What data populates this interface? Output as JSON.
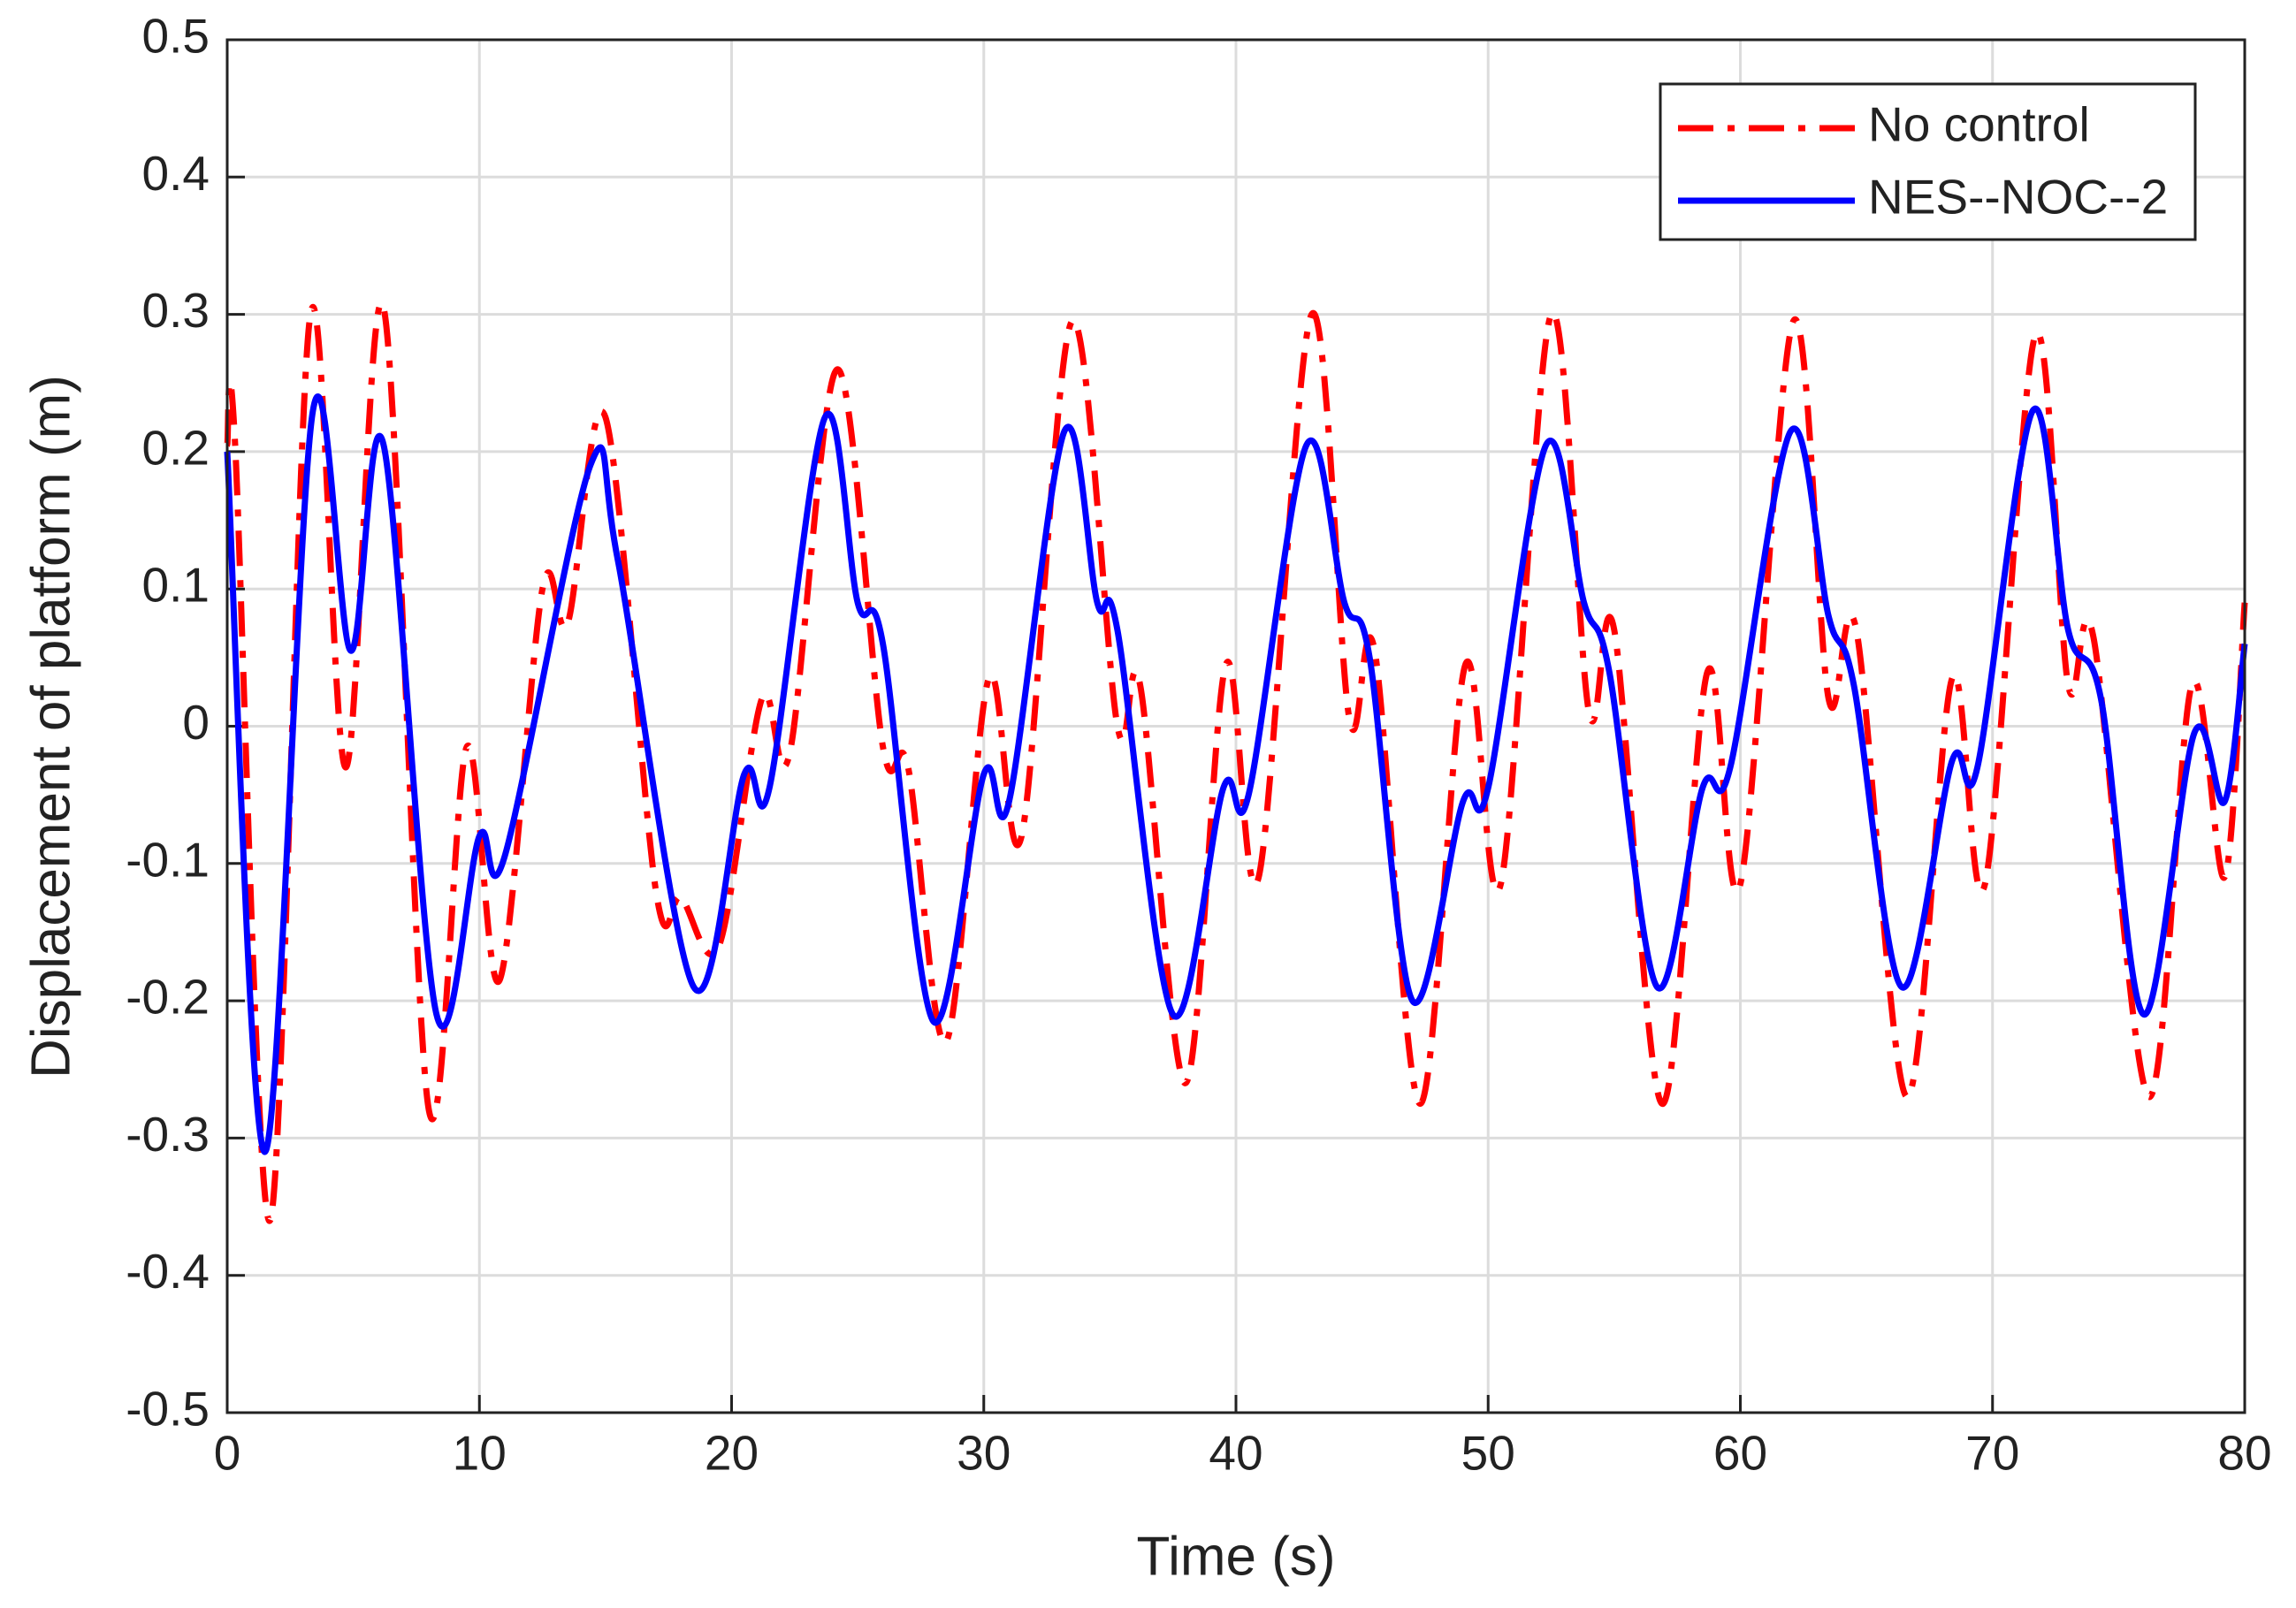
{
  "chart_data": {
    "type": "line",
    "xlabel": "Time (s)",
    "ylabel": "Displacement of platform (m)",
    "xlim": [
      0,
      80
    ],
    "xticks": [
      0,
      10,
      20,
      30,
      40,
      50,
      60,
      70,
      80
    ],
    "ylim": [
      -0.5,
      0.5
    ],
    "yticks": [
      -0.5,
      -0.4,
      -0.3,
      -0.2,
      -0.1,
      0,
      0.1,
      0.2,
      0.3,
      0.4,
      0.5
    ],
    "grid": true,
    "legend": "upper right",
    "series": [
      {
        "name": "No control",
        "color": "#ff0000",
        "style": "dash-dot",
        "x": [
          0,
          0.3,
          1.7,
          3.3,
          4.7,
          6.2,
          8,
          9.5,
          10.8,
          12.5,
          13.5,
          15,
          17,
          18,
          19.5,
          21.2,
          22.3,
          24.2,
          26,
          27,
          28.5,
          30.2,
          31.5,
          33.5,
          35.3,
          36.2,
          38,
          39.6,
          40.9,
          43,
          44.5,
          45.5,
          47.3,
          49.1,
          50.5,
          52.5,
          54,
          55,
          56.9,
          58.7,
          60,
          62.1,
          63.5,
          64.6,
          66.6,
          68.4,
          69.7,
          71.7,
          73,
          74,
          76.2,
          77.9,
          79.2,
          80
        ],
        "values": [
          0.205,
          0.21,
          -0.36,
          0.3,
          -0.03,
          0.305,
          -0.28,
          -0.015,
          -0.185,
          0.1,
          0.075,
          0.225,
          -0.12,
          -0.125,
          -0.16,
          0.02,
          -0.02,
          0.26,
          -0.015,
          -0.03,
          -0.23,
          0.035,
          -0.08,
          0.295,
          0.0,
          0.03,
          -0.26,
          0.045,
          -0.11,
          0.3,
          0.005,
          0.055,
          -0.275,
          0.045,
          -0.115,
          0.3,
          0.01,
          0.07,
          -0.275,
          0.04,
          -0.115,
          0.295,
          0.02,
          0.07,
          -0.27,
          0.035,
          -0.115,
          0.285,
          0.03,
          0.065,
          -0.27,
          0.03,
          -0.11,
          0.09
        ]
      },
      {
        "name": "NES--NOC--2",
        "color": "#0000ff",
        "style": "solid",
        "x": [
          0,
          1.5,
          3.4,
          4.9,
          6.2,
          8.3,
          10,
          11,
          14.4,
          15.5,
          18.5,
          20.5,
          21.5,
          23.7,
          25,
          26,
          28,
          30,
          31,
          33.2,
          34.5,
          35.3,
          37.5,
          39.5,
          40.5,
          42.8,
          44.3,
          45.3,
          47,
          49,
          50,
          52.3,
          53.8,
          54.8,
          56.7,
          58.5,
          59.6,
          62,
          63.5,
          64.5,
          66.4,
          68.4,
          69.4,
          71.6,
          73,
          74.3,
          76,
          78,
          79.2,
          80
        ],
        "values": [
          0.2,
          -0.31,
          0.23,
          0.055,
          0.205,
          -0.21,
          -0.08,
          -0.095,
          0.19,
          0.12,
          -0.19,
          -0.035,
          -0.045,
          0.225,
          0.09,
          0.06,
          -0.215,
          -0.035,
          -0.055,
          0.215,
          0.09,
          0.07,
          -0.21,
          -0.045,
          -0.05,
          0.205,
          0.09,
          0.05,
          -0.2,
          -0.055,
          -0.045,
          0.205,
          0.09,
          0.04,
          -0.19,
          -0.045,
          -0.03,
          0.215,
          0.08,
          0.03,
          -0.19,
          -0.025,
          -0.03,
          0.23,
          0.07,
          0.02,
          -0.21,
          -0.005,
          -0.055,
          0.06
        ]
      }
    ]
  }
}
